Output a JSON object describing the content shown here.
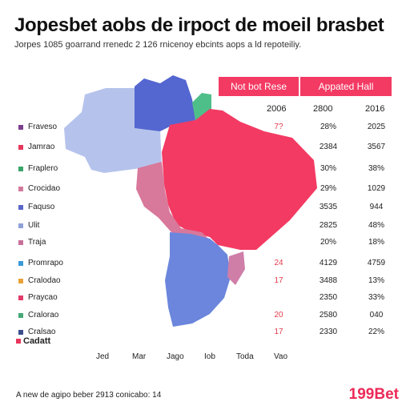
{
  "title": "Jopesbet aobs de irpoct de moeil brasbet",
  "subtitle": "Jorpes 1085 goarrand rrenedc 2 126 rnicenoy ebcints aops a ld repoteiliy.",
  "header_tabs": [
    {
      "label": "Not bot Rese",
      "color": "#f33a63"
    },
    {
      "label": "Appated Hall",
      "color": "#f33a63"
    }
  ],
  "years": [
    "2006",
    "2800",
    "2016"
  ],
  "rows": [
    {
      "label": "Fraveso",
      "color": "#7b3f8e",
      "v1": "7?",
      "v2": "28%",
      "v3": "2025"
    },
    {
      "label": "Jamrao",
      "color": "#e8365c",
      "v1": "",
      "v2": "2384",
      "v3": "3567"
    },
    {
      "label": "Fraplero",
      "color": "#3aa56a",
      "v1": "",
      "v2": "30%",
      "v3": "38%"
    },
    {
      "label": "Crocidao",
      "color": "#d27a9c",
      "v1": "",
      "v2": "29%",
      "v3": "1029"
    },
    {
      "label": "Faquso",
      "color": "#5a66c8",
      "v1": "",
      "v2": "3535",
      "v3": "944"
    },
    {
      "label": "Ulit",
      "color": "#8fa1d8",
      "v1": "",
      "v2": "2825",
      "v3": "48%"
    },
    {
      "label": "Traja",
      "color": "#c8709a",
      "v1": "",
      "v2": "20%",
      "v3": "18%"
    },
    {
      "label": "Promrapo",
      "color": "#3a9ad6",
      "v1": "24",
      "v2": "4129",
      "v3": "4759"
    },
    {
      "label": "Cralodao",
      "color": "#e8a23a",
      "v1": "17",
      "v2": "3488",
      "v3": "13%"
    },
    {
      "label": "Praycao",
      "color": "#e23b6a",
      "v1": "",
      "v2": "2350",
      "v3": "33%"
    },
    {
      "label": "Cralorao",
      "color": "#46a877",
      "v1": "20",
      "v2": "2580",
      "v3": "040"
    },
    {
      "label": "Cralsao",
      "color": "#3a4e8e",
      "v1": "17",
      "v2": "2330",
      "v3": "22%"
    }
  ],
  "months": [
    "Jed",
    "Mar",
    "Jago",
    "Iob",
    "Toda",
    "Vao"
  ],
  "cadatt_label": "Cadatt",
  "footnote": "A new de agipo beber 2913 conicabo: 14",
  "brand": "199Bet",
  "map_regions": [
    {
      "name": "north-west",
      "color": "#b5c3ec"
    },
    {
      "name": "north-central",
      "color": "#5466d0"
    },
    {
      "name": "north-east-strip",
      "color": "#4fbf8a"
    },
    {
      "name": "central-east",
      "color": "#f33a63"
    },
    {
      "name": "central-west",
      "color": "#d8789b"
    },
    {
      "name": "south",
      "color": "#6b86dc"
    },
    {
      "name": "far-south",
      "color": "#cf7ea8"
    }
  ]
}
